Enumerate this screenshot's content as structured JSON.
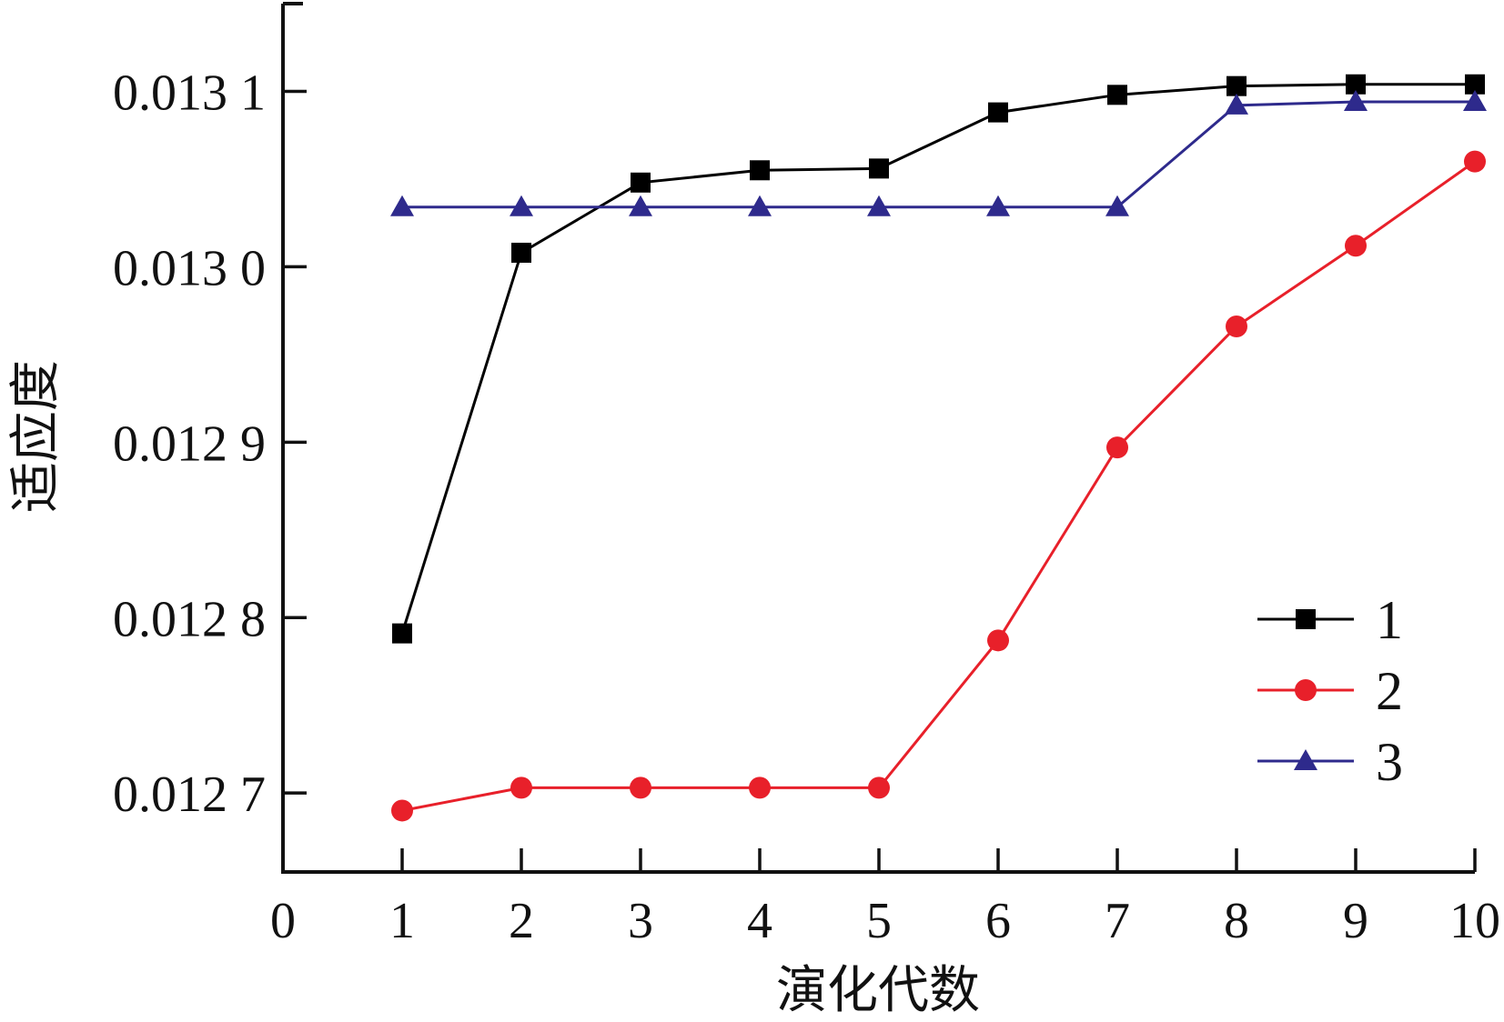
{
  "chart_data": {
    "type": "line",
    "xlabel": "演化代数",
    "ylabel": "适应度",
    "xlim": [
      0,
      10
    ],
    "ylim": [
      0.012655,
      0.01315
    ],
    "x_ticks": [
      0,
      1,
      2,
      3,
      4,
      5,
      6,
      7,
      8,
      9,
      10
    ],
    "x_tick_labels": [
      "0",
      "1",
      "2",
      "3",
      "4",
      "5",
      "6",
      "7",
      "8",
      "9",
      "10"
    ],
    "y_ticks": [
      0.0127,
      0.0128,
      0.0129,
      0.013,
      0.0131
    ],
    "y_tick_labels": [
      "0.012 7",
      "0.012 8",
      "0.012 9",
      "0.013 0",
      "0.013 1"
    ],
    "grid": false,
    "legend_position": "bottom-right",
    "x": [
      1,
      2,
      3,
      4,
      5,
      6,
      7,
      8,
      9,
      10
    ],
    "series": [
      {
        "name": "1",
        "color": "#000000",
        "marker": "square",
        "values": [
          0.012791,
          0.013008,
          0.013048,
          0.013055,
          0.013056,
          0.013088,
          0.013098,
          0.013103,
          0.013104,
          0.013104
        ]
      },
      {
        "name": "2",
        "color": "#e8202a",
        "marker": "circle",
        "values": [
          0.01269,
          0.012703,
          0.012703,
          0.012703,
          0.012703,
          0.012787,
          0.012897,
          0.012966,
          0.013012,
          0.01306
        ]
      },
      {
        "name": "3",
        "color": "#2e2a8c",
        "marker": "triangle",
        "values": [
          0.013034,
          0.013034,
          0.013034,
          0.013034,
          0.013034,
          0.013034,
          0.013034,
          0.013092,
          0.013094,
          0.013094
        ]
      }
    ]
  }
}
